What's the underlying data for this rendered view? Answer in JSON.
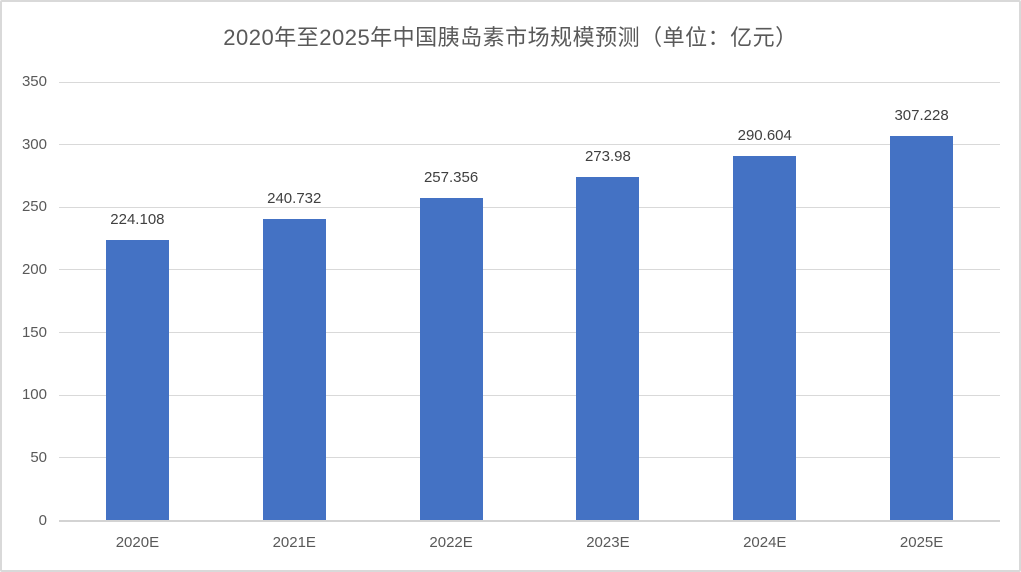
{
  "chart_data": {
    "type": "bar",
    "title": "2020年至2025年中国胰岛素市场规模预测（单位：亿元）",
    "categories": [
      "2020E",
      "2021E",
      "2022E",
      "2023E",
      "2024E",
      "2025E"
    ],
    "values": [
      224.108,
      240.732,
      257.356,
      273.98,
      290.604,
      307.228
    ],
    "value_labels": [
      "224.108",
      "240.732",
      "257.356",
      "273.98",
      "290.604",
      "307.228"
    ],
    "xlabel": "",
    "ylabel": "",
    "ylim": [
      0,
      350
    ],
    "yticks": [
      0,
      50,
      100,
      150,
      200,
      250,
      300,
      350
    ],
    "grid": true,
    "legend": false,
    "colors": {
      "bar": "#4472C4",
      "gridline": "#D9D9D9",
      "axis_line": "#D3D3D3",
      "title_text": "#595959",
      "value_label_text": "#404040",
      "axis_label_text": "#595959",
      "background": "#FFFFFF",
      "frame_border": "#D9D9D9"
    }
  }
}
